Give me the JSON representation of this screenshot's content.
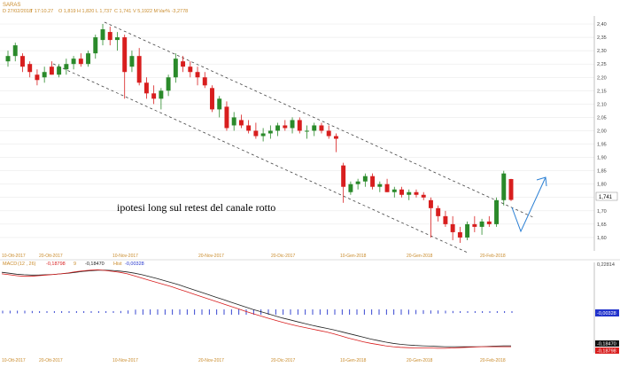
{
  "header": {
    "symbol": "SARAS",
    "date_label": "D 27/02/2018",
    "time_label": "T 17:10.27",
    "open_label": "O 1,819",
    "high_label": "H 1,820",
    "low_label": "L 1,737",
    "close_label": "C 1,741",
    "volume_label": "V 5,1922 M",
    "var_label": "Var% -3,2778"
  },
  "annotation": {
    "text": "ipotesi long sul retest del canale rotto"
  },
  "price_badge": "1,741",
  "macd_panel": {
    "label": "MACD",
    "params": "(12 , 26)",
    "macd_value": "-0,18798",
    "signal_prefix": "9",
    "signal_value": "-0,18470",
    "hist_prefix": "Hist",
    "hist_value": "-0,00328",
    "top_value": "0,22814",
    "hist_badge": "-0,00328",
    "signal_badge": "-0,18470",
    "macd_badge": "-0,18798"
  },
  "colors": {
    "up": "#2a8a2a",
    "down": "#d81e1e",
    "macd_line": "#d81e1e",
    "signal_line": "#222222",
    "hist": "#2233cc",
    "arrow": "#2a7fd4",
    "grid": "#dddddd"
  },
  "chart_data": {
    "type": "candlestick",
    "y_ticks": [
      "2,40",
      "2,35",
      "2,30",
      "2,25",
      "2,20",
      "2,15",
      "2,10",
      "2,05",
      "2,00",
      "1,95",
      "1,90",
      "1,85",
      "1,80",
      "1,75",
      "1,70",
      "1,65",
      "1,60"
    ],
    "y_tick_values": [
      2.4,
      2.35,
      2.3,
      2.25,
      2.2,
      2.15,
      2.1,
      2.05,
      2.0,
      1.95,
      1.9,
      1.85,
      1.8,
      1.75,
      1.7,
      1.65,
      1.6
    ],
    "x_ticks": [
      "10-Ott-2017",
      "20-Ott-2017",
      "10-Nov-2017",
      "20-Nov-2017",
      "20-Dic-2017",
      "10-Gen-2018",
      "20-Gen-2018",
      "20-Feb-2018"
    ],
    "ylim": [
      1.55,
      2.43
    ],
    "candles": [
      {
        "o": 2.26,
        "h": 2.3,
        "l": 2.24,
        "c": 2.28
      },
      {
        "o": 2.28,
        "h": 2.33,
        "l": 2.26,
        "c": 2.32
      },
      {
        "o": 2.28,
        "h": 2.29,
        "l": 2.22,
        "c": 2.24
      },
      {
        "o": 2.25,
        "h": 2.26,
        "l": 2.2,
        "c": 2.22
      },
      {
        "o": 2.21,
        "h": 2.23,
        "l": 2.17,
        "c": 2.19
      },
      {
        "o": 2.2,
        "h": 2.24,
        "l": 2.18,
        "c": 2.22
      },
      {
        "o": 2.24,
        "h": 2.26,
        "l": 2.21,
        "c": 2.21
      },
      {
        "o": 2.21,
        "h": 2.25,
        "l": 2.2,
        "c": 2.24
      },
      {
        "o": 2.23,
        "h": 2.27,
        "l": 2.21,
        "c": 2.25
      },
      {
        "o": 2.25,
        "h": 2.28,
        "l": 2.23,
        "c": 2.27
      },
      {
        "o": 2.27,
        "h": 2.29,
        "l": 2.24,
        "c": 2.25
      },
      {
        "o": 2.25,
        "h": 2.3,
        "l": 2.24,
        "c": 2.29
      },
      {
        "o": 2.29,
        "h": 2.36,
        "l": 2.27,
        "c": 2.35
      },
      {
        "o": 2.34,
        "h": 2.4,
        "l": 2.32,
        "c": 2.38
      },
      {
        "o": 2.37,
        "h": 2.39,
        "l": 2.32,
        "c": 2.34
      },
      {
        "o": 2.34,
        "h": 2.37,
        "l": 2.3,
        "c": 2.35
      },
      {
        "o": 2.35,
        "h": 2.36,
        "l": 2.12,
        "c": 2.22
      },
      {
        "o": 2.24,
        "h": 2.3,
        "l": 2.22,
        "c": 2.28
      },
      {
        "o": 2.28,
        "h": 2.31,
        "l": 2.17,
        "c": 2.18
      },
      {
        "o": 2.18,
        "h": 2.2,
        "l": 2.12,
        "c": 2.14
      },
      {
        "o": 2.14,
        "h": 2.17,
        "l": 2.1,
        "c": 2.12
      },
      {
        "o": 2.12,
        "h": 2.16,
        "l": 2.08,
        "c": 2.15
      },
      {
        "o": 2.15,
        "h": 2.21,
        "l": 2.13,
        "c": 2.2
      },
      {
        "o": 2.2,
        "h": 2.29,
        "l": 2.18,
        "c": 2.27
      },
      {
        "o": 2.26,
        "h": 2.28,
        "l": 2.22,
        "c": 2.24
      },
      {
        "o": 2.24,
        "h": 2.26,
        "l": 2.2,
        "c": 2.22
      },
      {
        "o": 2.22,
        "h": 2.24,
        "l": 2.17,
        "c": 2.2
      },
      {
        "o": 2.2,
        "h": 2.22,
        "l": 2.16,
        "c": 2.17
      },
      {
        "o": 2.16,
        "h": 2.17,
        "l": 2.07,
        "c": 2.08
      },
      {
        "o": 2.08,
        "h": 2.13,
        "l": 2.05,
        "c": 2.12
      },
      {
        "o": 2.09,
        "h": 2.11,
        "l": 2.0,
        "c": 2.01
      },
      {
        "o": 2.02,
        "h": 2.07,
        "l": 2.0,
        "c": 2.05
      },
      {
        "o": 2.04,
        "h": 2.06,
        "l": 2.01,
        "c": 2.02
      },
      {
        "o": 2.02,
        "h": 2.04,
        "l": 1.99,
        "c": 2.0
      },
      {
        "o": 2.0,
        "h": 2.03,
        "l": 1.97,
        "c": 1.98
      },
      {
        "o": 1.98,
        "h": 2.01,
        "l": 1.96,
        "c": 1.99
      },
      {
        "o": 1.99,
        "h": 2.02,
        "l": 1.97,
        "c": 2.0
      },
      {
        "o": 2.0,
        "h": 2.03,
        "l": 1.98,
        "c": 2.02
      },
      {
        "o": 2.02,
        "h": 2.04,
        "l": 2.0,
        "c": 2.01
      },
      {
        "o": 2.01,
        "h": 2.05,
        "l": 1.99,
        "c": 2.04
      },
      {
        "o": 2.04,
        "h": 2.05,
        "l": 1.99,
        "c": 2.0
      },
      {
        "o": 2.0,
        "h": 2.02,
        "l": 1.97,
        "c": 2.0
      },
      {
        "o": 2.0,
        "h": 2.03,
        "l": 1.98,
        "c": 2.02
      },
      {
        "o": 2.02,
        "h": 2.03,
        "l": 1.99,
        "c": 2.0
      },
      {
        "o": 2.0,
        "h": 2.02,
        "l": 1.97,
        "c": 1.98
      },
      {
        "o": 1.98,
        "h": 1.99,
        "l": 1.92,
        "c": 1.97
      },
      {
        "o": 1.87,
        "h": 1.88,
        "l": 1.73,
        "c": 1.79
      },
      {
        "o": 1.77,
        "h": 1.81,
        "l": 1.76,
        "c": 1.8
      },
      {
        "o": 1.8,
        "h": 1.82,
        "l": 1.78,
        "c": 1.81
      },
      {
        "o": 1.81,
        "h": 1.84,
        "l": 1.79,
        "c": 1.83
      },
      {
        "o": 1.83,
        "h": 1.84,
        "l": 1.78,
        "c": 1.79
      },
      {
        "o": 1.79,
        "h": 1.81,
        "l": 1.77,
        "c": 1.8
      },
      {
        "o": 1.8,
        "h": 1.82,
        "l": 1.77,
        "c": 1.77
      },
      {
        "o": 1.77,
        "h": 1.79,
        "l": 1.75,
        "c": 1.78
      },
      {
        "o": 1.78,
        "h": 1.79,
        "l": 1.75,
        "c": 1.76
      },
      {
        "o": 1.76,
        "h": 1.78,
        "l": 1.74,
        "c": 1.77
      },
      {
        "o": 1.77,
        "h": 1.78,
        "l": 1.75,
        "c": 1.76
      },
      {
        "o": 1.76,
        "h": 1.77,
        "l": 1.74,
        "c": 1.75
      },
      {
        "o": 1.74,
        "h": 1.75,
        "l": 1.6,
        "c": 1.71
      },
      {
        "o": 1.71,
        "h": 1.72,
        "l": 1.66,
        "c": 1.68
      },
      {
        "o": 1.68,
        "h": 1.7,
        "l": 1.64,
        "c": 1.65
      },
      {
        "o": 1.65,
        "h": 1.68,
        "l": 1.59,
        "c": 1.62
      },
      {
        "o": 1.62,
        "h": 1.64,
        "l": 1.58,
        "c": 1.6
      },
      {
        "o": 1.6,
        "h": 1.66,
        "l": 1.59,
        "c": 1.65
      },
      {
        "o": 1.65,
        "h": 1.68,
        "l": 1.62,
        "c": 1.64
      },
      {
        "o": 1.64,
        "h": 1.67,
        "l": 1.61,
        "c": 1.66
      },
      {
        "o": 1.66,
        "h": 1.68,
        "l": 1.64,
        "c": 1.65
      },
      {
        "o": 1.65,
        "h": 1.75,
        "l": 1.64,
        "c": 1.74
      },
      {
        "o": 1.74,
        "h": 1.85,
        "l": 1.72,
        "c": 1.84
      },
      {
        "o": 1.819,
        "h": 1.82,
        "l": 1.737,
        "c": 1.741
      }
    ],
    "macd": [
      0.05,
      0.047,
      0.044,
      0.042,
      0.042,
      0.044,
      0.046,
      0.048,
      0.05,
      0.053,
      0.057,
      0.06,
      0.062,
      0.063,
      0.061,
      0.058,
      0.055,
      0.05,
      0.043,
      0.036,
      0.029,
      0.022,
      0.015,
      0.008,
      0.0,
      -0.008,
      -0.016,
      -0.024,
      -0.032,
      -0.04,
      -0.048,
      -0.056,
      -0.064,
      -0.072,
      -0.08,
      -0.087,
      -0.094,
      -0.101,
      -0.108,
      -0.114,
      -0.12,
      -0.125,
      -0.13,
      -0.135,
      -0.14,
      -0.146,
      -0.153,
      -0.16,
      -0.166,
      -0.172,
      -0.177,
      -0.181,
      -0.185,
      -0.188,
      -0.19,
      -0.191,
      -0.192,
      -0.192,
      -0.192,
      -0.193,
      -0.193,
      -0.192,
      -0.191,
      -0.19,
      -0.189,
      -0.188,
      -0.188,
      -0.188,
      -0.188,
      -0.188
    ],
    "signal": [
      0.055,
      0.052,
      0.049,
      0.047,
      0.046,
      0.046,
      0.047,
      0.048,
      0.05,
      0.052,
      0.055,
      0.058,
      0.06,
      0.062,
      0.062,
      0.061,
      0.059,
      0.056,
      0.052,
      0.047,
      0.041,
      0.035,
      0.028,
      0.021,
      0.014,
      0.006,
      -0.002,
      -0.01,
      -0.018,
      -0.026,
      -0.034,
      -0.042,
      -0.05,
      -0.058,
      -0.066,
      -0.073,
      -0.08,
      -0.087,
      -0.094,
      -0.1,
      -0.106,
      -0.112,
      -0.118,
      -0.123,
      -0.128,
      -0.133,
      -0.139,
      -0.145,
      -0.151,
      -0.157,
      -0.163,
      -0.168,
      -0.173,
      -0.177,
      -0.18,
      -0.182,
      -0.184,
      -0.185,
      -0.186,
      -0.187,
      -0.188,
      -0.188,
      -0.188,
      -0.188,
      -0.188,
      -0.188,
      -0.187,
      -0.186,
      -0.185,
      -0.185
    ],
    "macd_ylim": [
      -0.205,
      0.07
    ]
  }
}
